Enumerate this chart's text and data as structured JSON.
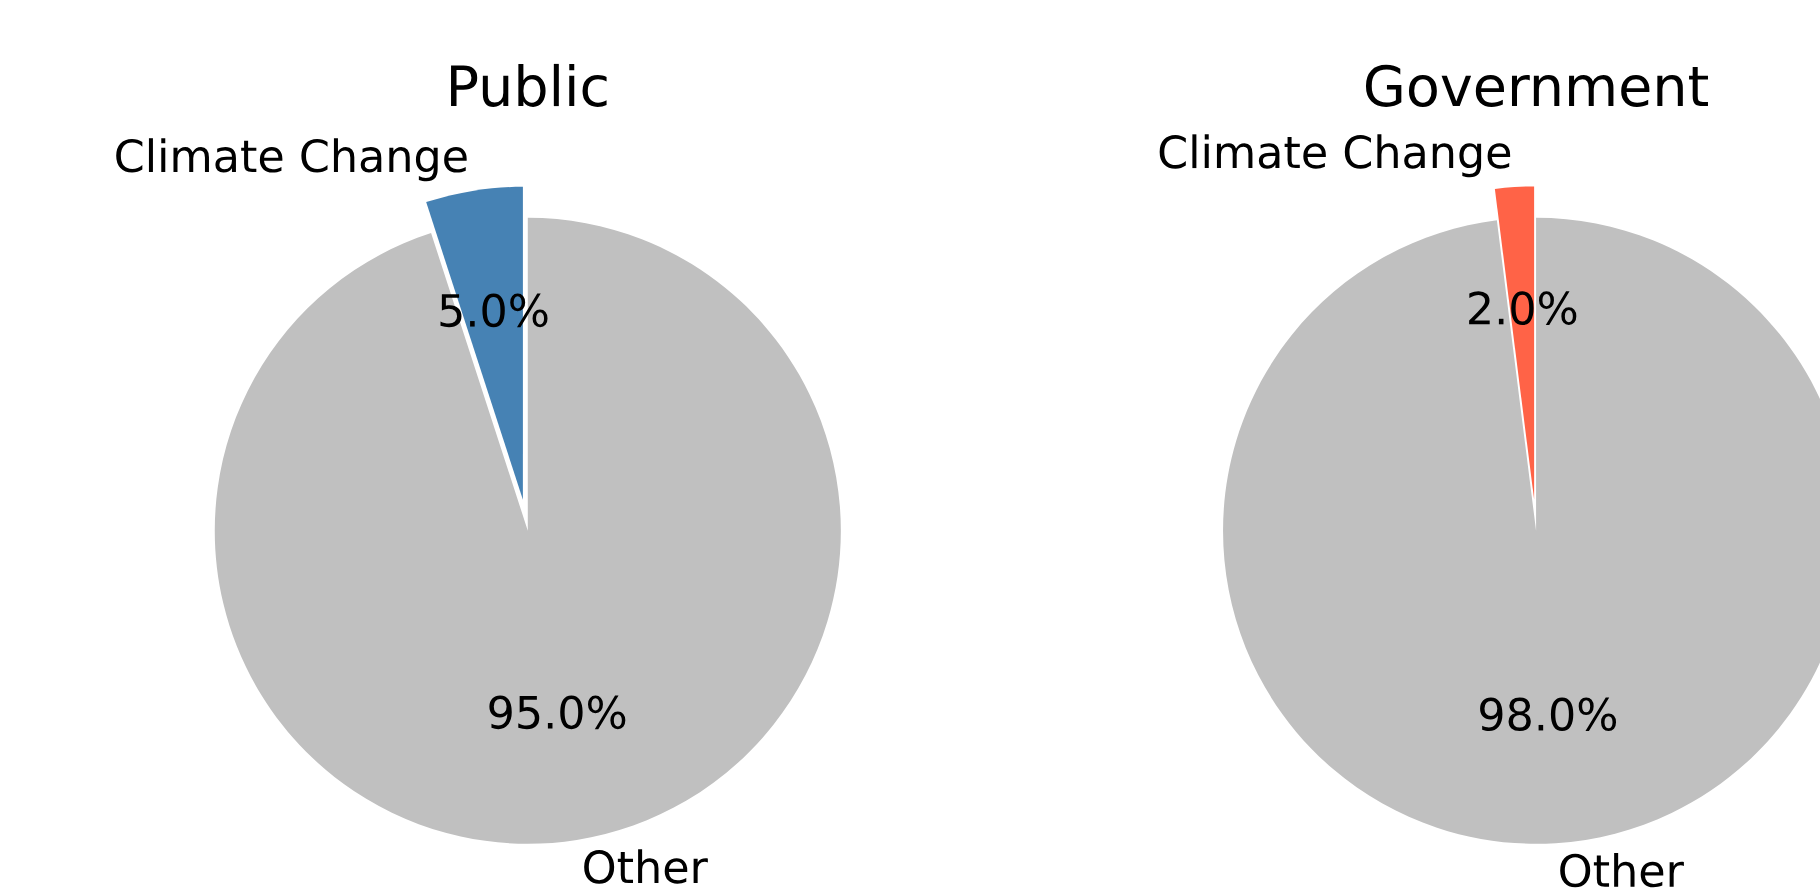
{
  "chart_data": [
    {
      "type": "pie",
      "title": "Public",
      "categories": [
        "Climate Change",
        "Other"
      ],
      "values": [
        5,
        95
      ],
      "colors": [
        "#4682b4",
        "#c0c0c0"
      ],
      "value_labels": [
        "5.0%",
        "95.0%"
      ]
    },
    {
      "type": "pie",
      "title": "Government",
      "categories": [
        "Climate Change",
        "Other"
      ],
      "values": [
        2,
        98
      ],
      "colors": [
        "#ff6347",
        "#c0c0c0"
      ],
      "value_labels": [
        "2.0%",
        "98.0%"
      ]
    }
  ]
}
